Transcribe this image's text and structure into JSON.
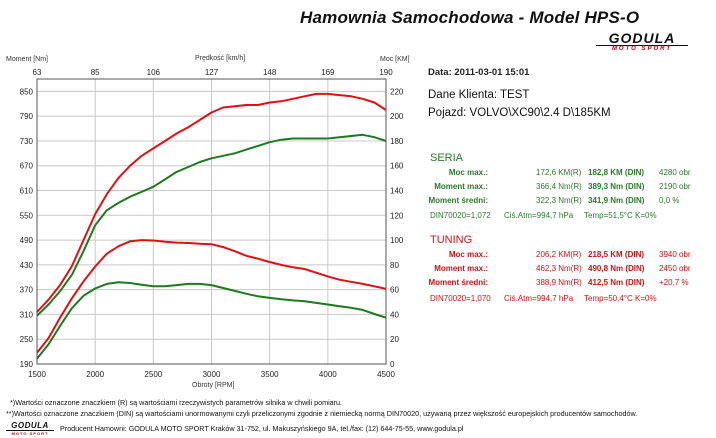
{
  "header": {
    "title": "Hamownia Samochodowa   -   Model HPS-O",
    "logo_main": "GODULA",
    "logo_sub": "MOTO SPORT"
  },
  "chart_data": {
    "type": "line",
    "axis_labels": {
      "left": "Moment [Nm]",
      "top": "Prędkość [km/h]",
      "right": "Moc [KM]",
      "bottom": "Obroty [RPM]"
    },
    "x_range": [
      1500,
      4500
    ],
    "x_ticks": [
      1500,
      2000,
      2500,
      3000,
      3500,
      4000,
      4500
    ],
    "left_range": [
      190,
      880
    ],
    "left_ticks": [
      190,
      250,
      310,
      370,
      430,
      490,
      550,
      610,
      670,
      730,
      790,
      850
    ],
    "right_range": [
      0,
      230
    ],
    "right_ticks": [
      0,
      20,
      40,
      60,
      80,
      100,
      120,
      140,
      160,
      180,
      200,
      220
    ],
    "top_ticks": [
      63,
      85,
      106,
      127,
      148,
      169,
      190
    ],
    "series": [
      {
        "name": "Moc (SERIA)",
        "axis": "right",
        "color": "#1e7a1e",
        "x": [
          1500,
          1600,
          1700,
          1800,
          1900,
          2000,
          2100,
          2200,
          2300,
          2400,
          2500,
          2600,
          2700,
          2800,
          2900,
          3000,
          3100,
          3200,
          3300,
          3400,
          3500,
          3600,
          3700,
          3800,
          3900,
          4000,
          4100,
          4200,
          4300,
          4400,
          4500
        ],
        "y": [
          39,
          48,
          59,
          72,
          91,
          112,
          124,
          130,
          135,
          139,
          143,
          149,
          155,
          159,
          163,
          166,
          168,
          170,
          173,
          176,
          179,
          181,
          182,
          182,
          182,
          182,
          183,
          184,
          185,
          183,
          180
        ]
      },
      {
        "name": "Moc (TUNING)",
        "axis": "right",
        "color": "#e01010",
        "x": [
          1500,
          1600,
          1700,
          1800,
          1900,
          2000,
          2100,
          2200,
          2300,
          2400,
          2500,
          2600,
          2700,
          2800,
          2900,
          3000,
          3100,
          3200,
          3300,
          3400,
          3500,
          3600,
          3700,
          3800,
          3900,
          4000,
          4100,
          4200,
          4300,
          4400,
          4500
        ],
        "y": [
          42,
          52,
          64,
          79,
          100,
          121,
          137,
          150,
          160,
          168,
          174,
          180,
          186,
          191,
          197,
          203,
          207,
          208,
          209,
          209,
          211,
          212,
          214,
          216,
          218,
          218,
          217,
          216,
          214,
          211,
          205
        ]
      },
      {
        "name": "Moment (SERIA)",
        "axis": "left",
        "color": "#1e7a1e",
        "x": [
          1500,
          1600,
          1700,
          1800,
          1900,
          2000,
          2100,
          2200,
          2300,
          2400,
          2500,
          2600,
          2700,
          2800,
          2900,
          3000,
          3100,
          3200,
          3300,
          3400,
          3500,
          3600,
          3700,
          3800,
          3900,
          4000,
          4100,
          4200,
          4300,
          4400,
          4500
        ],
        "y": [
          203,
          238,
          283,
          325,
          355,
          373,
          384,
          388,
          386,
          382,
          378,
          378,
          381,
          384,
          384,
          381,
          374,
          367,
          360,
          354,
          350,
          347,
          344,
          342,
          338,
          334,
          330,
          326,
          321,
          311,
          302
        ]
      },
      {
        "name": "Moment (TUNING)",
        "axis": "left",
        "color": "#e01010",
        "x": [
          1500,
          1600,
          1700,
          1800,
          1900,
          2000,
          2100,
          2200,
          2300,
          2400,
          2500,
          2600,
          2700,
          2800,
          2900,
          3000,
          3100,
          3200,
          3300,
          3400,
          3500,
          3600,
          3700,
          3800,
          3900,
          4000,
          4100,
          4200,
          4300,
          4400,
          4500
        ],
        "y": [
          217,
          253,
          303,
          349,
          390,
          426,
          457,
          475,
          487,
          490,
          489,
          486,
          484,
          483,
          481,
          480,
          473,
          463,
          452,
          445,
          437,
          430,
          424,
          420,
          411,
          402,
          394,
          389,
          384,
          378,
          372
        ]
      }
    ]
  },
  "info": {
    "date_label": "Data: 2011-03-01  15:01",
    "client_label": "Dane Klienta: TEST",
    "vehicle_label": "Pojazd: VOLVO\\XC90\\2.4 D\\185KM"
  },
  "seria": {
    "heading": "SERIA",
    "rows": [
      {
        "label": "Moc max.:",
        "v1": "172,6 KM(R)",
        "v2": "182,8 KM (DIN)",
        "v3": "4280 obr"
      },
      {
        "label": "Moment max.:",
        "v1": "366,4 Nm(R)",
        "v2": "389,3 Nm (DIN)",
        "v3": "2190 obr"
      },
      {
        "label": "Moment średni:",
        "v1": "322,3 Nm(R)",
        "v2": "341,9 Nm (DIN)",
        "v3": "0,0 %"
      }
    ],
    "din": "DIN70020=1,072",
    "atm": "Ciś.Atm=994,7 hPa",
    "temp": "Temp=51,5°C  K=0%"
  },
  "tuning": {
    "heading": "TUNING",
    "rows": [
      {
        "label": "Moc max.:",
        "v1": "206,2 KM(R)",
        "v2": "218,5 KM (DIN)",
        "v3": "3940 obr"
      },
      {
        "label": "Moment max.:",
        "v1": "462,3 Nm(R)",
        "v2": "490,8 Nm (DIN)",
        "v3": "2450 obr"
      },
      {
        "label": "Moment średni:",
        "v1": "388,9 Nm(R)",
        "v2": "412,5 Nm (DIN)",
        "v3": "+20,7 %"
      }
    ],
    "din": "DIN70020=1,070",
    "atm": "Ciś.Atm=994,7 hPa",
    "temp": "Temp=50,4°C  K=0%"
  },
  "footer": {
    "note1": "*)Wartości oznaczone znaczkiem (R) są wartościami rzeczywistych parametrów silnika w chwili pomiaru.",
    "note2": "**)Wartości oznaczone znaczkiem (DIN) są wartościami unormowanymi czyli przeliczonymi zgodnie z niemiecką normą DIN70020, używaną przez większość europejskich producentów samochodów.",
    "producer": "Producent Hamowni: GODULA MOTO SPORT Kraków 31-752, ul. Makuszyńskiego 9A, tel./fax: (12) 644-75-55, www.godula.pl",
    "logo_main": "GODULA",
    "logo_sub": "MOTO SPORT"
  },
  "colors": {
    "seria": "#1e7a1e",
    "tuning": "#e01010",
    "grid": "#c8c8c8",
    "label_green": "#2a7a2a",
    "label_red": "#d01010"
  }
}
